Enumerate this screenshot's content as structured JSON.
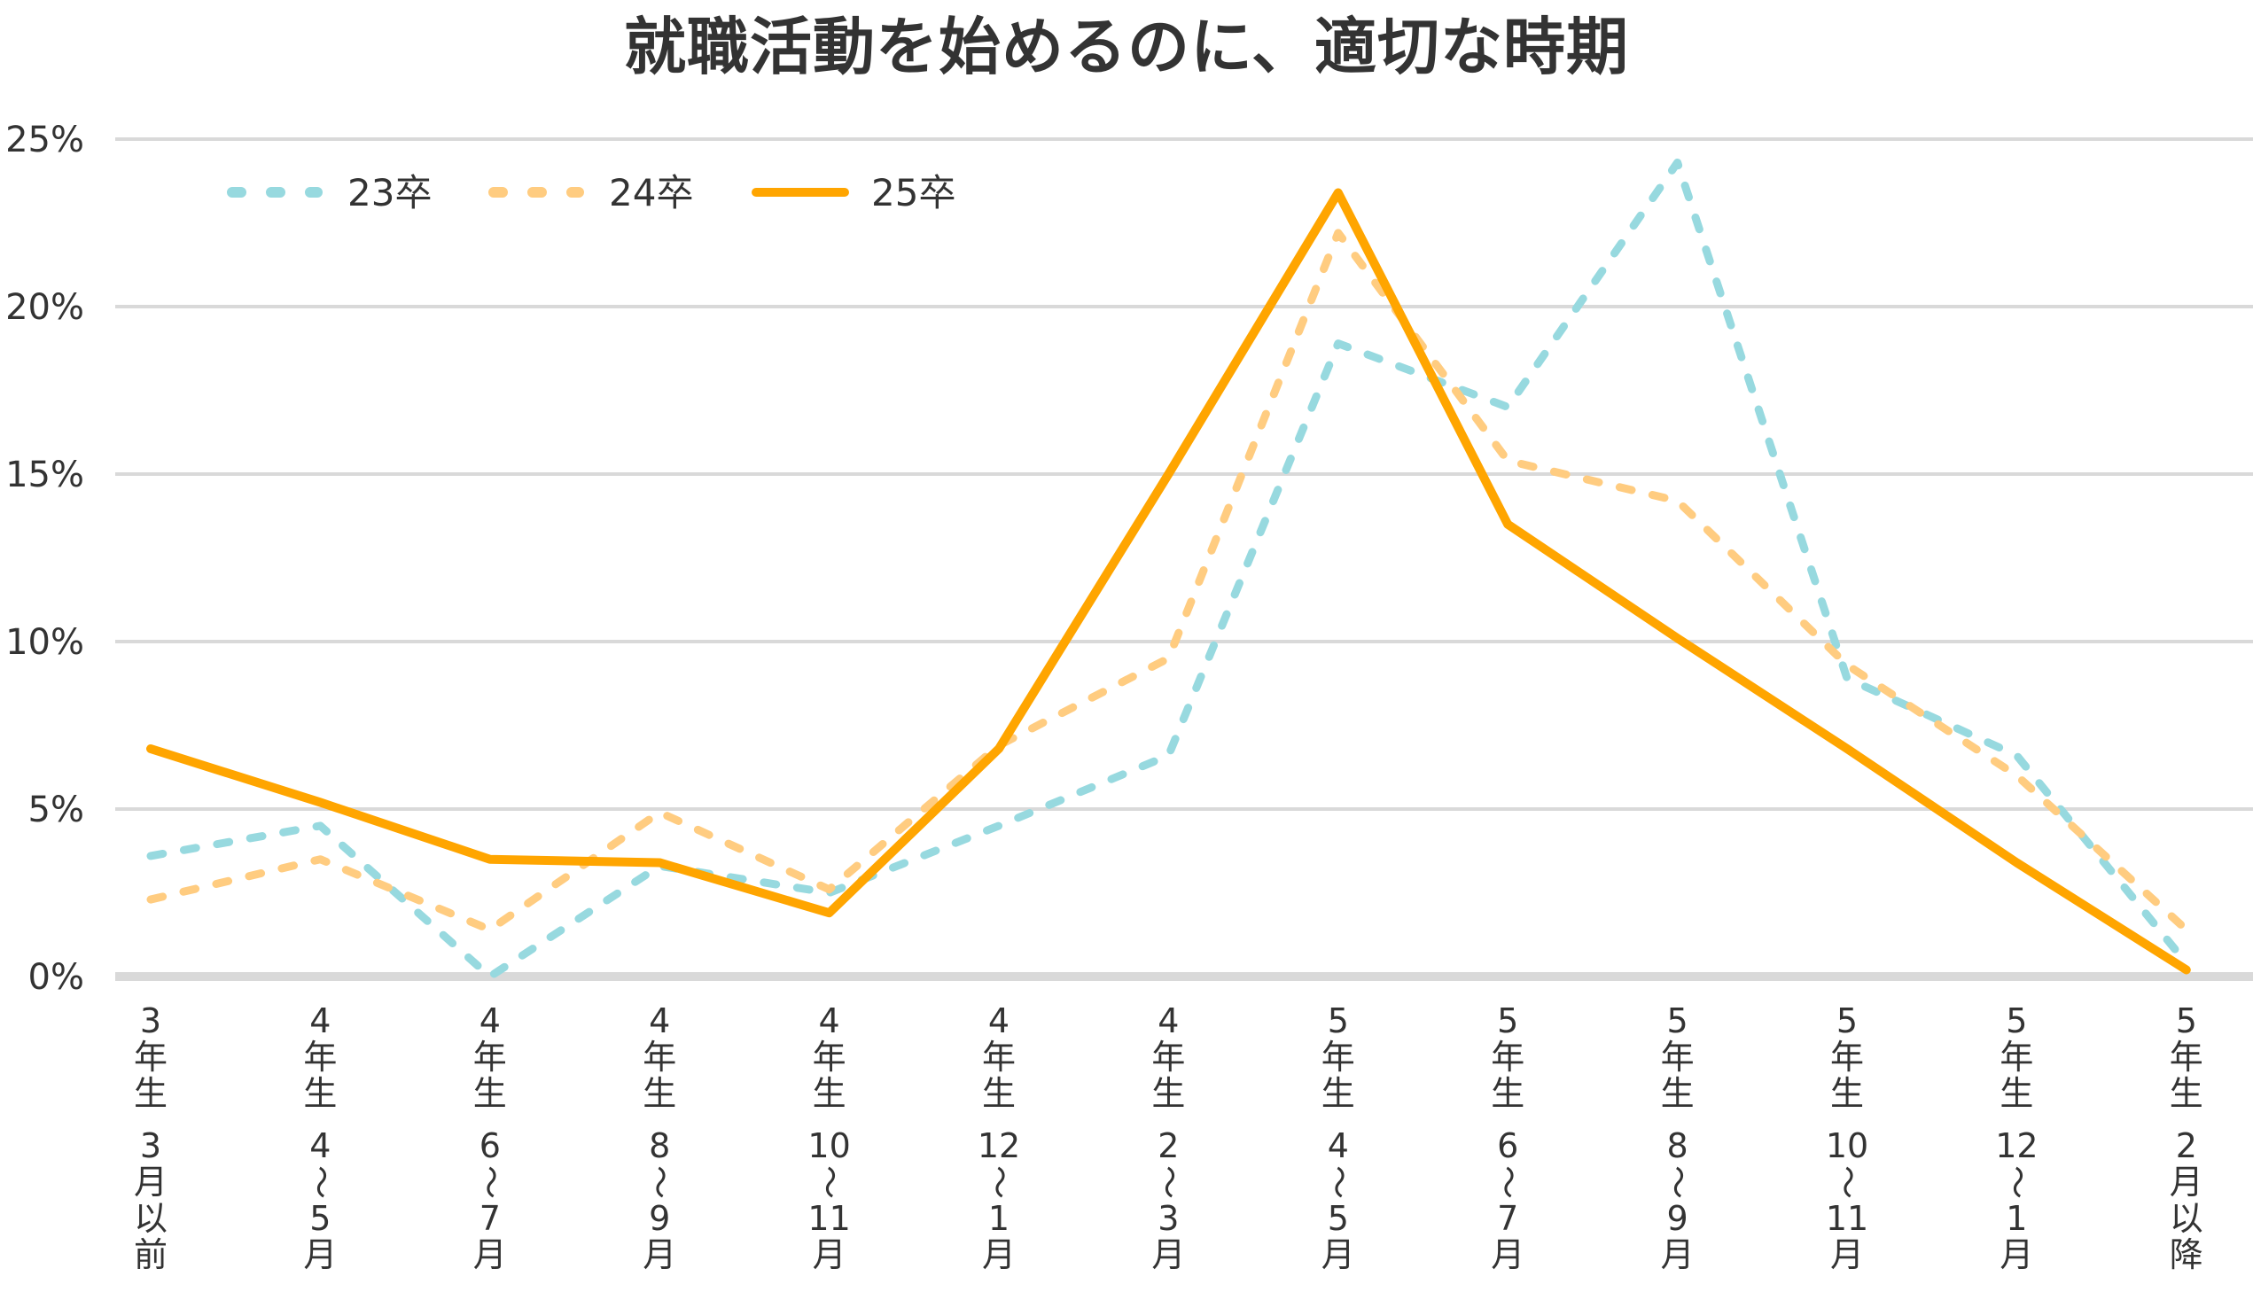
{
  "chart_data": {
    "type": "line",
    "title": "就職活動を始めるのに、適切な時期",
    "xlabel": "",
    "ylabel": "",
    "ylim": [
      0,
      25
    ],
    "yticks": [
      "0%",
      "5%",
      "10%",
      "15%",
      "20%",
      "25%"
    ],
    "ytick_values": [
      0,
      5,
      10,
      15,
      20,
      25
    ],
    "grid": true,
    "legend_position": "top-left",
    "categories": [
      {
        "year": "3年生",
        "period": "3月以前"
      },
      {
        "year": "4年生",
        "period": "4～5月"
      },
      {
        "year": "4年生",
        "period": "6～7月"
      },
      {
        "year": "4年生",
        "period": "8～9月"
      },
      {
        "year": "4年生",
        "period": "10～11月"
      },
      {
        "year": "4年生",
        "period": "12～1月"
      },
      {
        "year": "4年生",
        "period": "2～3月"
      },
      {
        "year": "5年生",
        "period": "4～5月"
      },
      {
        "year": "5年生",
        "period": "6～7月"
      },
      {
        "year": "5年生",
        "period": "8～9月"
      },
      {
        "year": "5年生",
        "period": "10～11月"
      },
      {
        "year": "5年生",
        "period": "12～1月"
      },
      {
        "year": "5年生",
        "period": "2月以降"
      }
    ],
    "series": [
      {
        "name": "23卒",
        "style": "dotted",
        "color": "#97d9df",
        "values": [
          3.6,
          4.5,
          0.0,
          3.3,
          2.5,
          4.5,
          6.6,
          18.9,
          17.0,
          24.3,
          8.9,
          6.6,
          0.4
        ]
      },
      {
        "name": "24卒",
        "style": "dotted",
        "color": "#ffcc80",
        "values": [
          2.3,
          3.5,
          1.4,
          4.9,
          2.6,
          6.9,
          9.5,
          22.2,
          15.4,
          14.2,
          9.3,
          6.0,
          1.4
        ]
      },
      {
        "name": "25卒",
        "style": "solid",
        "color": "#ffa500",
        "values": [
          6.8,
          5.2,
          3.5,
          3.4,
          1.9,
          6.8,
          15.0,
          23.4,
          13.5,
          10.1,
          6.8,
          3.4,
          0.2
        ]
      }
    ]
  },
  "colors": {
    "gridline": "#d9d9d9",
    "text": "#333333"
  }
}
